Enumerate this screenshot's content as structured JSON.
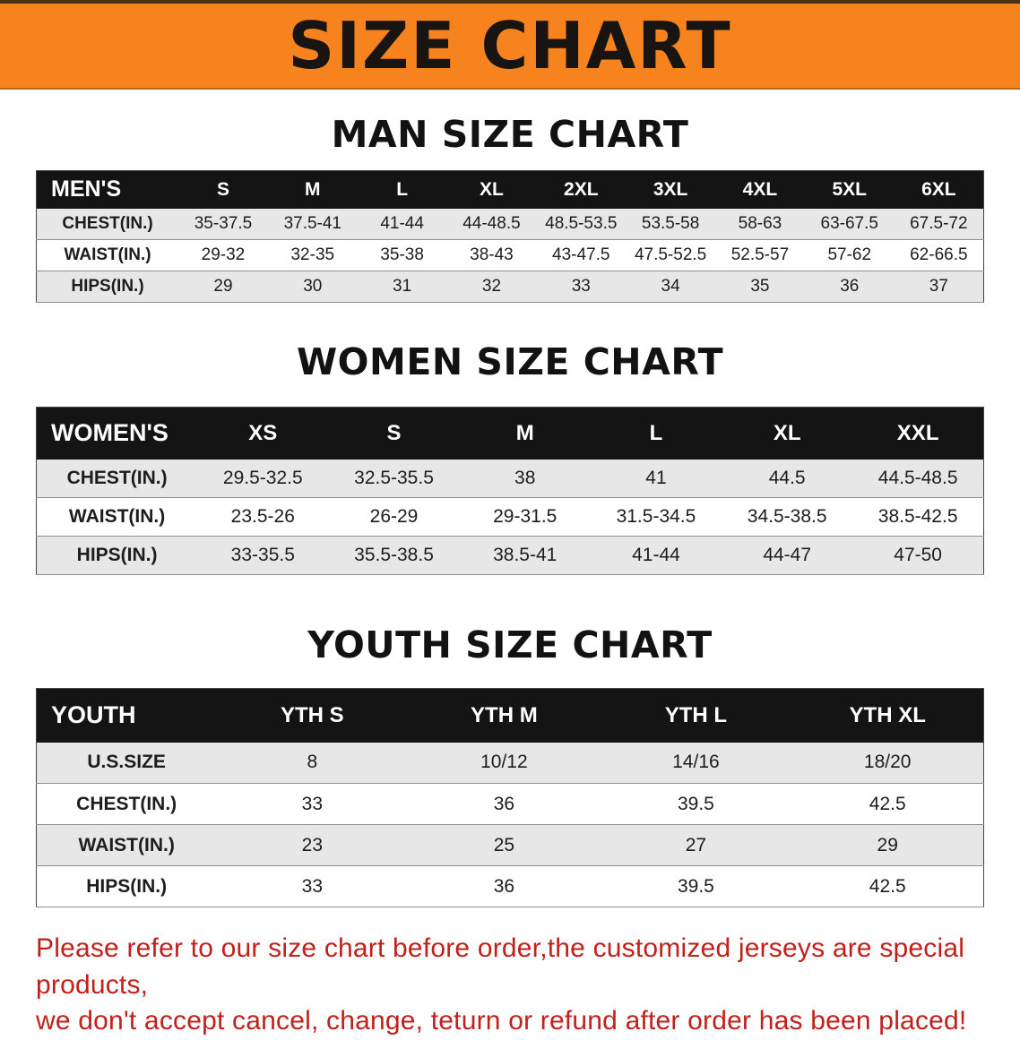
{
  "banner": {
    "title": "SIZE CHART",
    "bg_color": "#f6831e",
    "text_color": "#181411"
  },
  "colors": {
    "table_header_bg": "#141414",
    "row_stripe": "#e7e7e7",
    "note_red": "#c2201a"
  },
  "sections": [
    {
      "heading": "MAN SIZE CHART",
      "table": {
        "header": [
          "MEN'S",
          "S",
          "M",
          "L",
          "XL",
          "2XL",
          "3XL",
          "4XL",
          "5XL",
          "6XL"
        ],
        "rows": [
          [
            "CHEST(IN.)",
            "35-37.5",
            "37.5-41",
            "41-44",
            "44-48.5",
            "48.5-53.5",
            "53.5-58",
            "58-63",
            "63-67.5",
            "67.5-72"
          ],
          [
            "WAIST(IN.)",
            "29-32",
            "32-35",
            "35-38",
            "38-43",
            "43-47.5",
            "47.5-52.5",
            "52.5-57",
            "57-62",
            "62-66.5"
          ],
          [
            "HIPS(IN.)",
            "29",
            "30",
            "31",
            "32",
            "33",
            "34",
            "35",
            "36",
            "37"
          ]
        ]
      }
    },
    {
      "heading": "WOMEN SIZE CHART",
      "table": {
        "header": [
          "WOMEN'S",
          "XS",
          "S",
          "M",
          "L",
          "XL",
          "XXL"
        ],
        "rows": [
          [
            "CHEST(IN.)",
            "29.5-32.5",
            "32.5-35.5",
            "38",
            "41",
            "44.5",
            "44.5-48.5"
          ],
          [
            "WAIST(IN.)",
            "23.5-26",
            "26-29",
            "29-31.5",
            "31.5-34.5",
            "34.5-38.5",
            "38.5-42.5"
          ],
          [
            "HIPS(IN.)",
            "33-35.5",
            "35.5-38.5",
            "38.5-41",
            "41-44",
            "44-47",
            "47-50"
          ]
        ]
      }
    },
    {
      "heading": "YOUTH SIZE CHART",
      "table": {
        "header": [
          "YOUTH",
          "YTH S",
          "YTH M",
          "YTH L",
          "YTH XL"
        ],
        "rows": [
          [
            "U.S.SIZE",
            "8",
            "10/12",
            "14/16",
            "18/20"
          ],
          [
            "CHEST(IN.)",
            "33",
            "36",
            "39.5",
            "42.5"
          ],
          [
            "WAIST(IN.)",
            "23",
            "25",
            "27",
            "29"
          ],
          [
            "HIPS(IN.)",
            "33",
            "36",
            "39.5",
            "42.5"
          ]
        ]
      }
    }
  ],
  "footer": {
    "line1": "Please refer to our size chart before order,the customized jerseys are special products,",
    "line2": "we don't accept cancel, change, teturn or refund after order has been placed!"
  }
}
